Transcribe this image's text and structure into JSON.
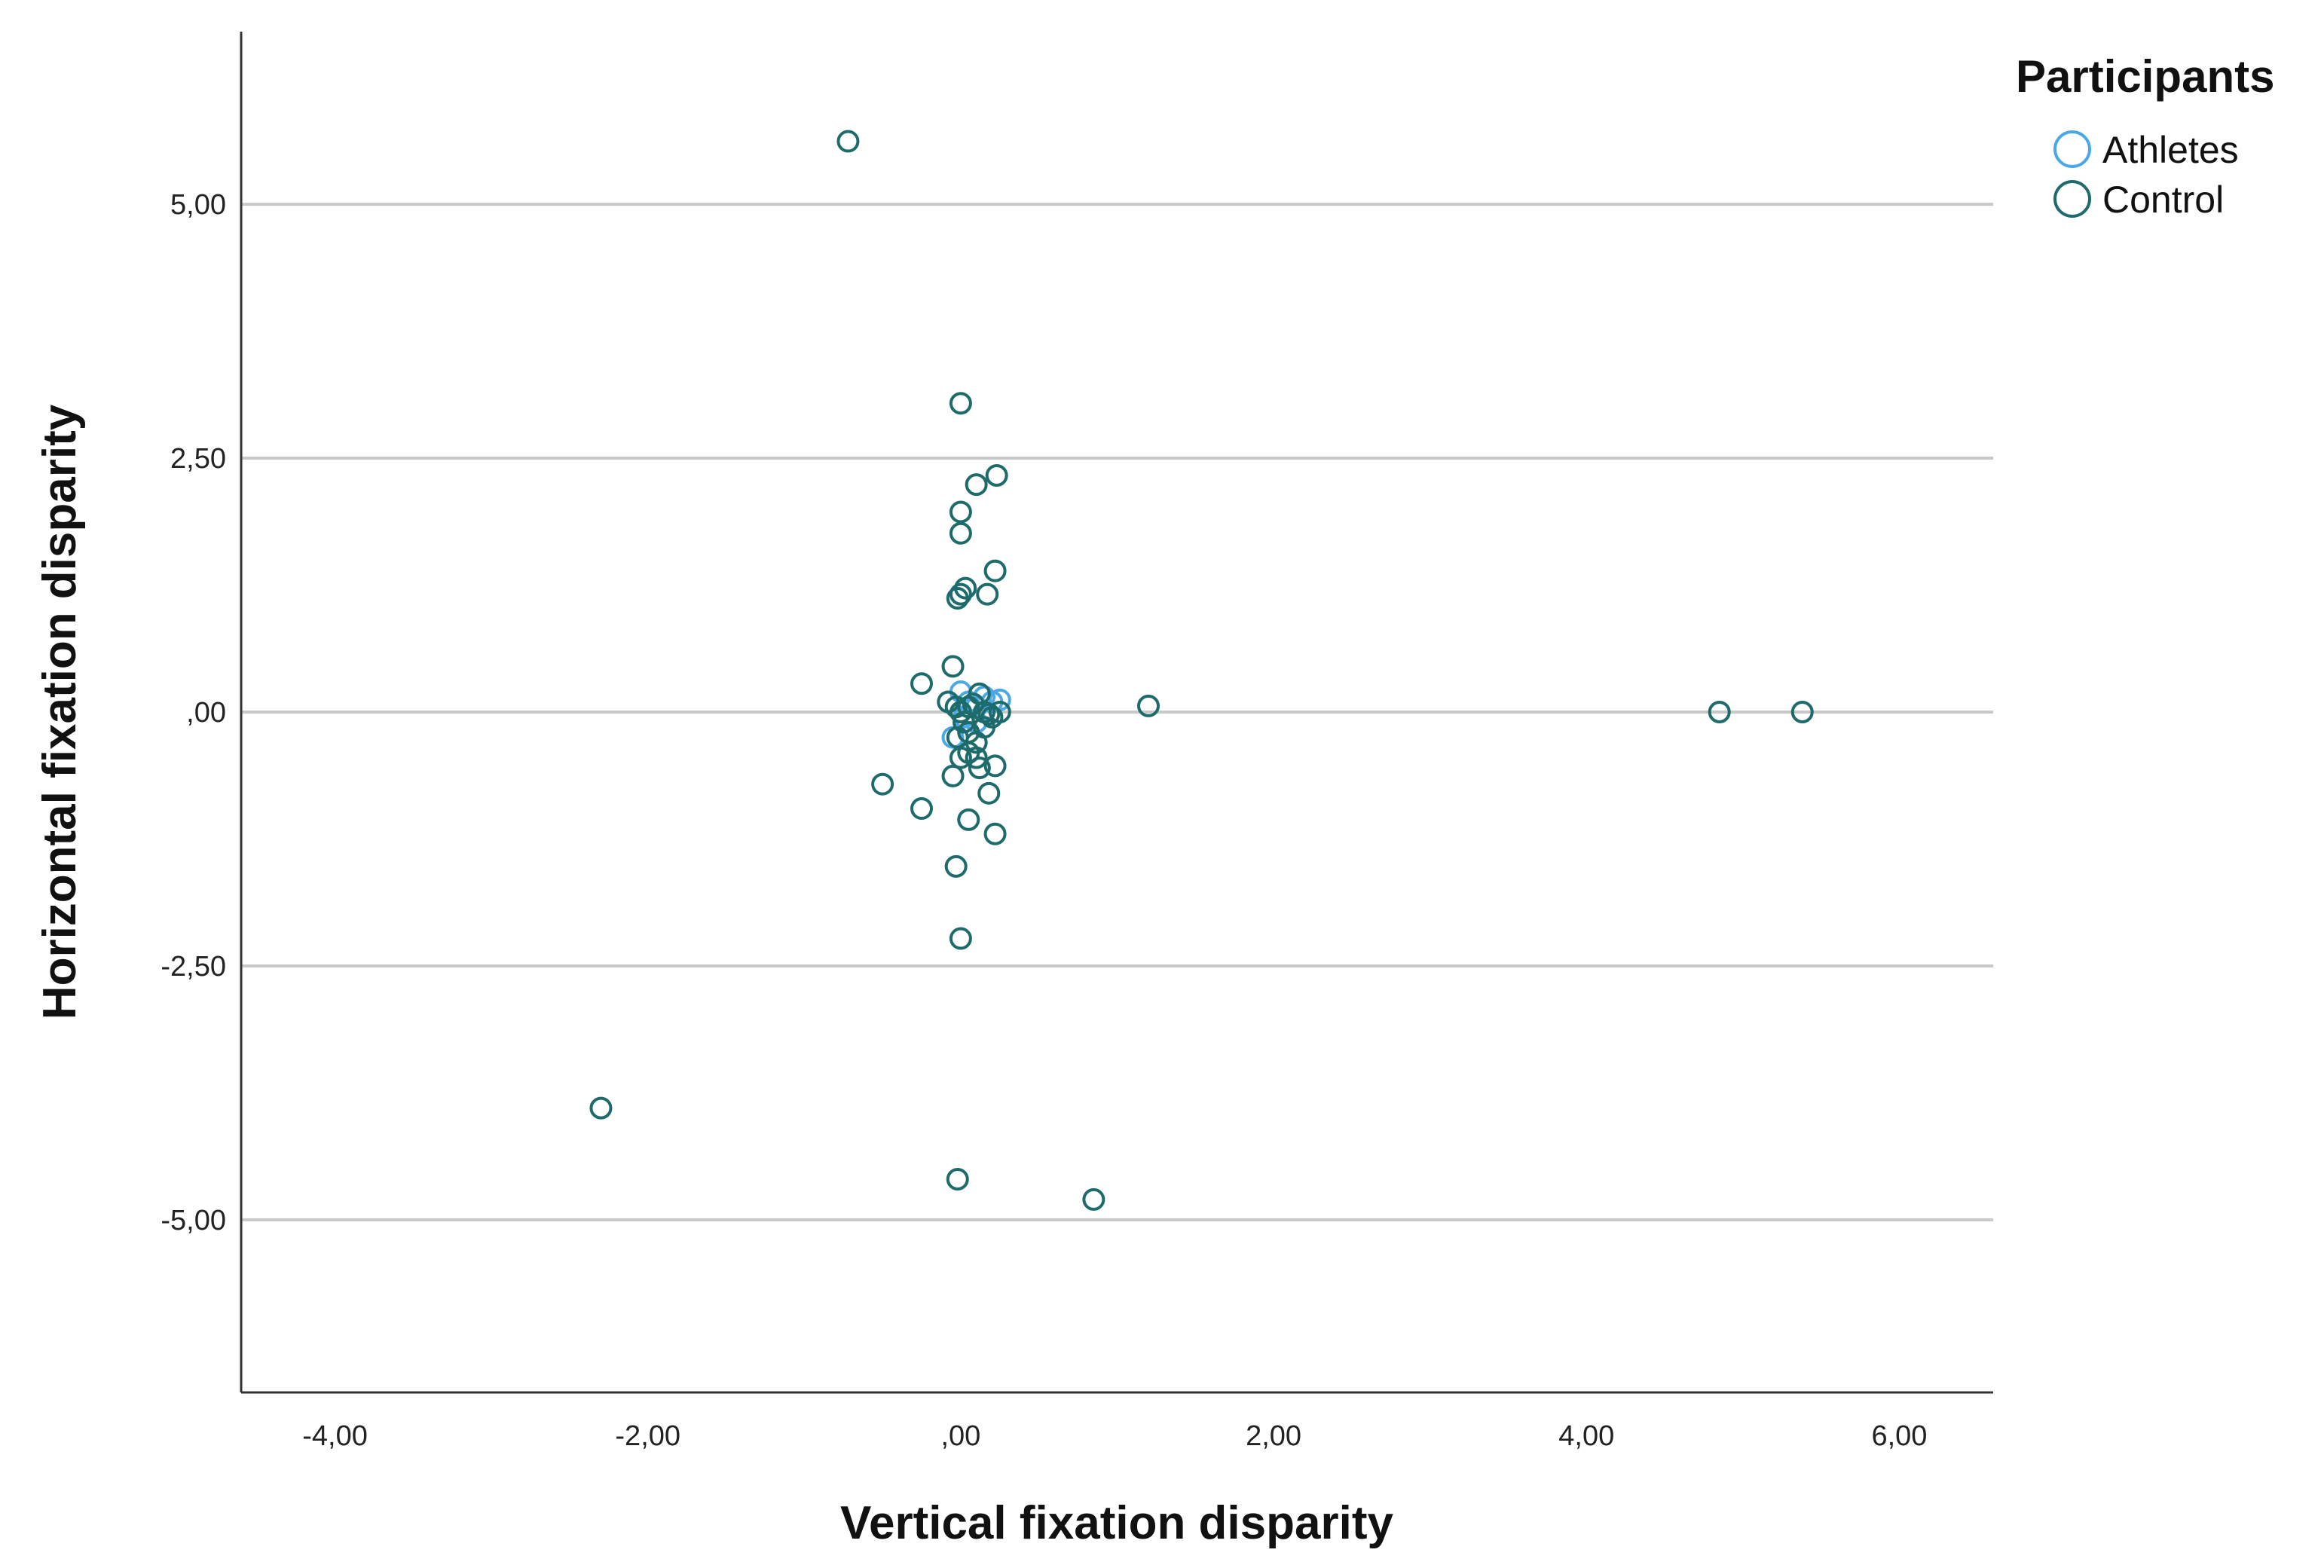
{
  "chart_data": {
    "type": "scatter",
    "title": "",
    "xlabel": "Vertical fixation disparity",
    "ylabel": "Horizontal fixation disparity",
    "xlim": [
      -4.6,
      6.6
    ],
    "ylim": [
      -6.7,
      6.7
    ],
    "x_ticks": [
      {
        "value": -4,
        "label": "-4,00"
      },
      {
        "value": -2,
        "label": "-2,00"
      },
      {
        "value": 0,
        "label": ",00"
      },
      {
        "value": 2,
        "label": "2,00"
      },
      {
        "value": 4,
        "label": "4,00"
      },
      {
        "value": 6,
        "label": "6,00"
      }
    ],
    "y_ticks": [
      {
        "value": 5,
        "label": "5,00"
      },
      {
        "value": 2.5,
        "label": "2,50"
      },
      {
        "value": 0,
        "label": ",00"
      },
      {
        "value": -2.5,
        "label": "-2,50"
      },
      {
        "value": -5,
        "label": "-5,00"
      }
    ],
    "grid": "horizontal",
    "legend": {
      "title": "Participants",
      "position": "top-right"
    },
    "series": [
      {
        "name": "Athletes",
        "color": "#4aa8e8",
        "points": [
          [
            0.0,
            0.2
          ],
          [
            0.05,
            0.1
          ],
          [
            0.1,
            0.05
          ],
          [
            0.2,
            0.1
          ],
          [
            0.25,
            0.12
          ],
          [
            -0.05,
            -0.25
          ],
          [
            0.0,
            0.0
          ],
          [
            0.1,
            -0.1
          ],
          [
            0.15,
            0.15
          ],
          [
            0.02,
            -0.05
          ]
        ]
      },
      {
        "name": "Control",
        "color": "#1e6b6b",
        "points": [
          [
            -0.72,
            5.62
          ],
          [
            0.0,
            3.04
          ],
          [
            0.23,
            2.33
          ],
          [
            0.1,
            2.24
          ],
          [
            0.0,
            1.97
          ],
          [
            0.0,
            1.76
          ],
          [
            0.22,
            1.39
          ],
          [
            0.03,
            1.22
          ],
          [
            0.0,
            1.16
          ],
          [
            0.17,
            1.16
          ],
          [
            -0.02,
            1.12
          ],
          [
            -0.05,
            0.45
          ],
          [
            -0.25,
            0.28
          ],
          [
            -0.08,
            0.1
          ],
          [
            0.12,
            0.18
          ],
          [
            0.05,
            0.05
          ],
          [
            0.0,
            0.0
          ],
          [
            0.15,
            0.0
          ],
          [
            0.25,
            0.0
          ],
          [
            0.2,
            -0.05
          ],
          [
            0.02,
            -0.1
          ],
          [
            0.15,
            -0.15
          ],
          [
            0.05,
            -0.2
          ],
          [
            -0.02,
            -0.25
          ],
          [
            0.05,
            -0.4
          ],
          [
            0.1,
            -0.45
          ],
          [
            0.0,
            -0.45
          ],
          [
            0.12,
            -0.55
          ],
          [
            0.22,
            -0.53
          ],
          [
            -0.05,
            -0.63
          ],
          [
            -0.5,
            -0.71
          ],
          [
            0.18,
            -0.8
          ],
          [
            -0.25,
            -0.95
          ],
          [
            0.05,
            -1.06
          ],
          [
            0.22,
            -1.2
          ],
          [
            -0.03,
            -1.52
          ],
          [
            0.0,
            -2.23
          ],
          [
            1.2,
            0.06
          ],
          [
            4.85,
            0.0
          ],
          [
            5.38,
            0.0
          ],
          [
            -2.3,
            -3.9
          ],
          [
            -0.02,
            -4.6
          ],
          [
            0.85,
            -4.8
          ],
          [
            0.08,
            0.08
          ],
          [
            0.18,
            -0.02
          ],
          [
            -0.03,
            0.05
          ],
          [
            0.1,
            -0.3
          ]
        ]
      }
    ]
  }
}
